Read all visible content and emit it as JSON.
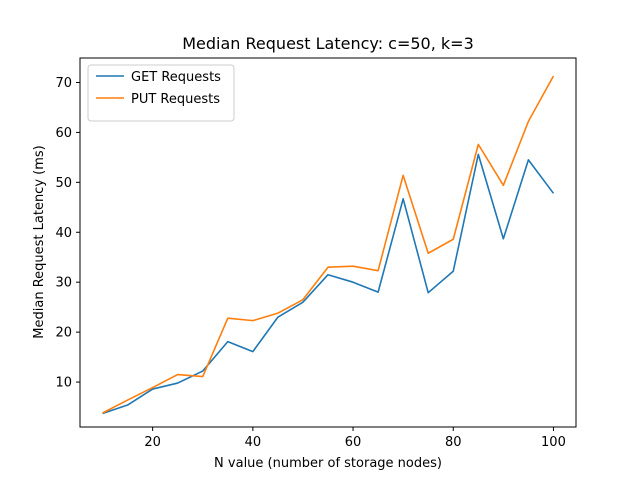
{
  "chart_data": {
    "type": "line",
    "title": "Median Request Latency: c=50, k=3",
    "xlabel": "N value (number of storage nodes)",
    "ylabel": "Median Request Latency (ms)",
    "xlim": [
      5.5,
      104.5
    ],
    "ylim": [
      1.0,
      74.9
    ],
    "xticks": [
      20,
      40,
      60,
      80,
      100
    ],
    "yticks": [
      10,
      20,
      30,
      40,
      50,
      60,
      70
    ],
    "grid": false,
    "legend_position": "upper-left",
    "x": [
      10,
      15,
      20,
      25,
      30,
      35,
      40,
      45,
      50,
      55,
      60,
      65,
      70,
      75,
      80,
      85,
      90,
      95,
      100
    ],
    "series": [
      {
        "name": "GET Requests",
        "color": "#1f77b4",
        "values": [
          3.7,
          5.4,
          8.6,
          9.8,
          12.2,
          18.1,
          16.1,
          23.0,
          26.0,
          31.5,
          30.0,
          28.0,
          46.7,
          27.9,
          32.2,
          55.6,
          38.7,
          54.5,
          47.8
        ]
      },
      {
        "name": "PUT Requests",
        "color": "#ff7f0e",
        "values": [
          3.8,
          6.4,
          8.9,
          11.5,
          11.1,
          22.8,
          22.3,
          23.8,
          26.5,
          33.0,
          33.2,
          32.3,
          51.4,
          35.8,
          38.6,
          57.6,
          49.4,
          62.2,
          71.3
        ]
      }
    ]
  }
}
